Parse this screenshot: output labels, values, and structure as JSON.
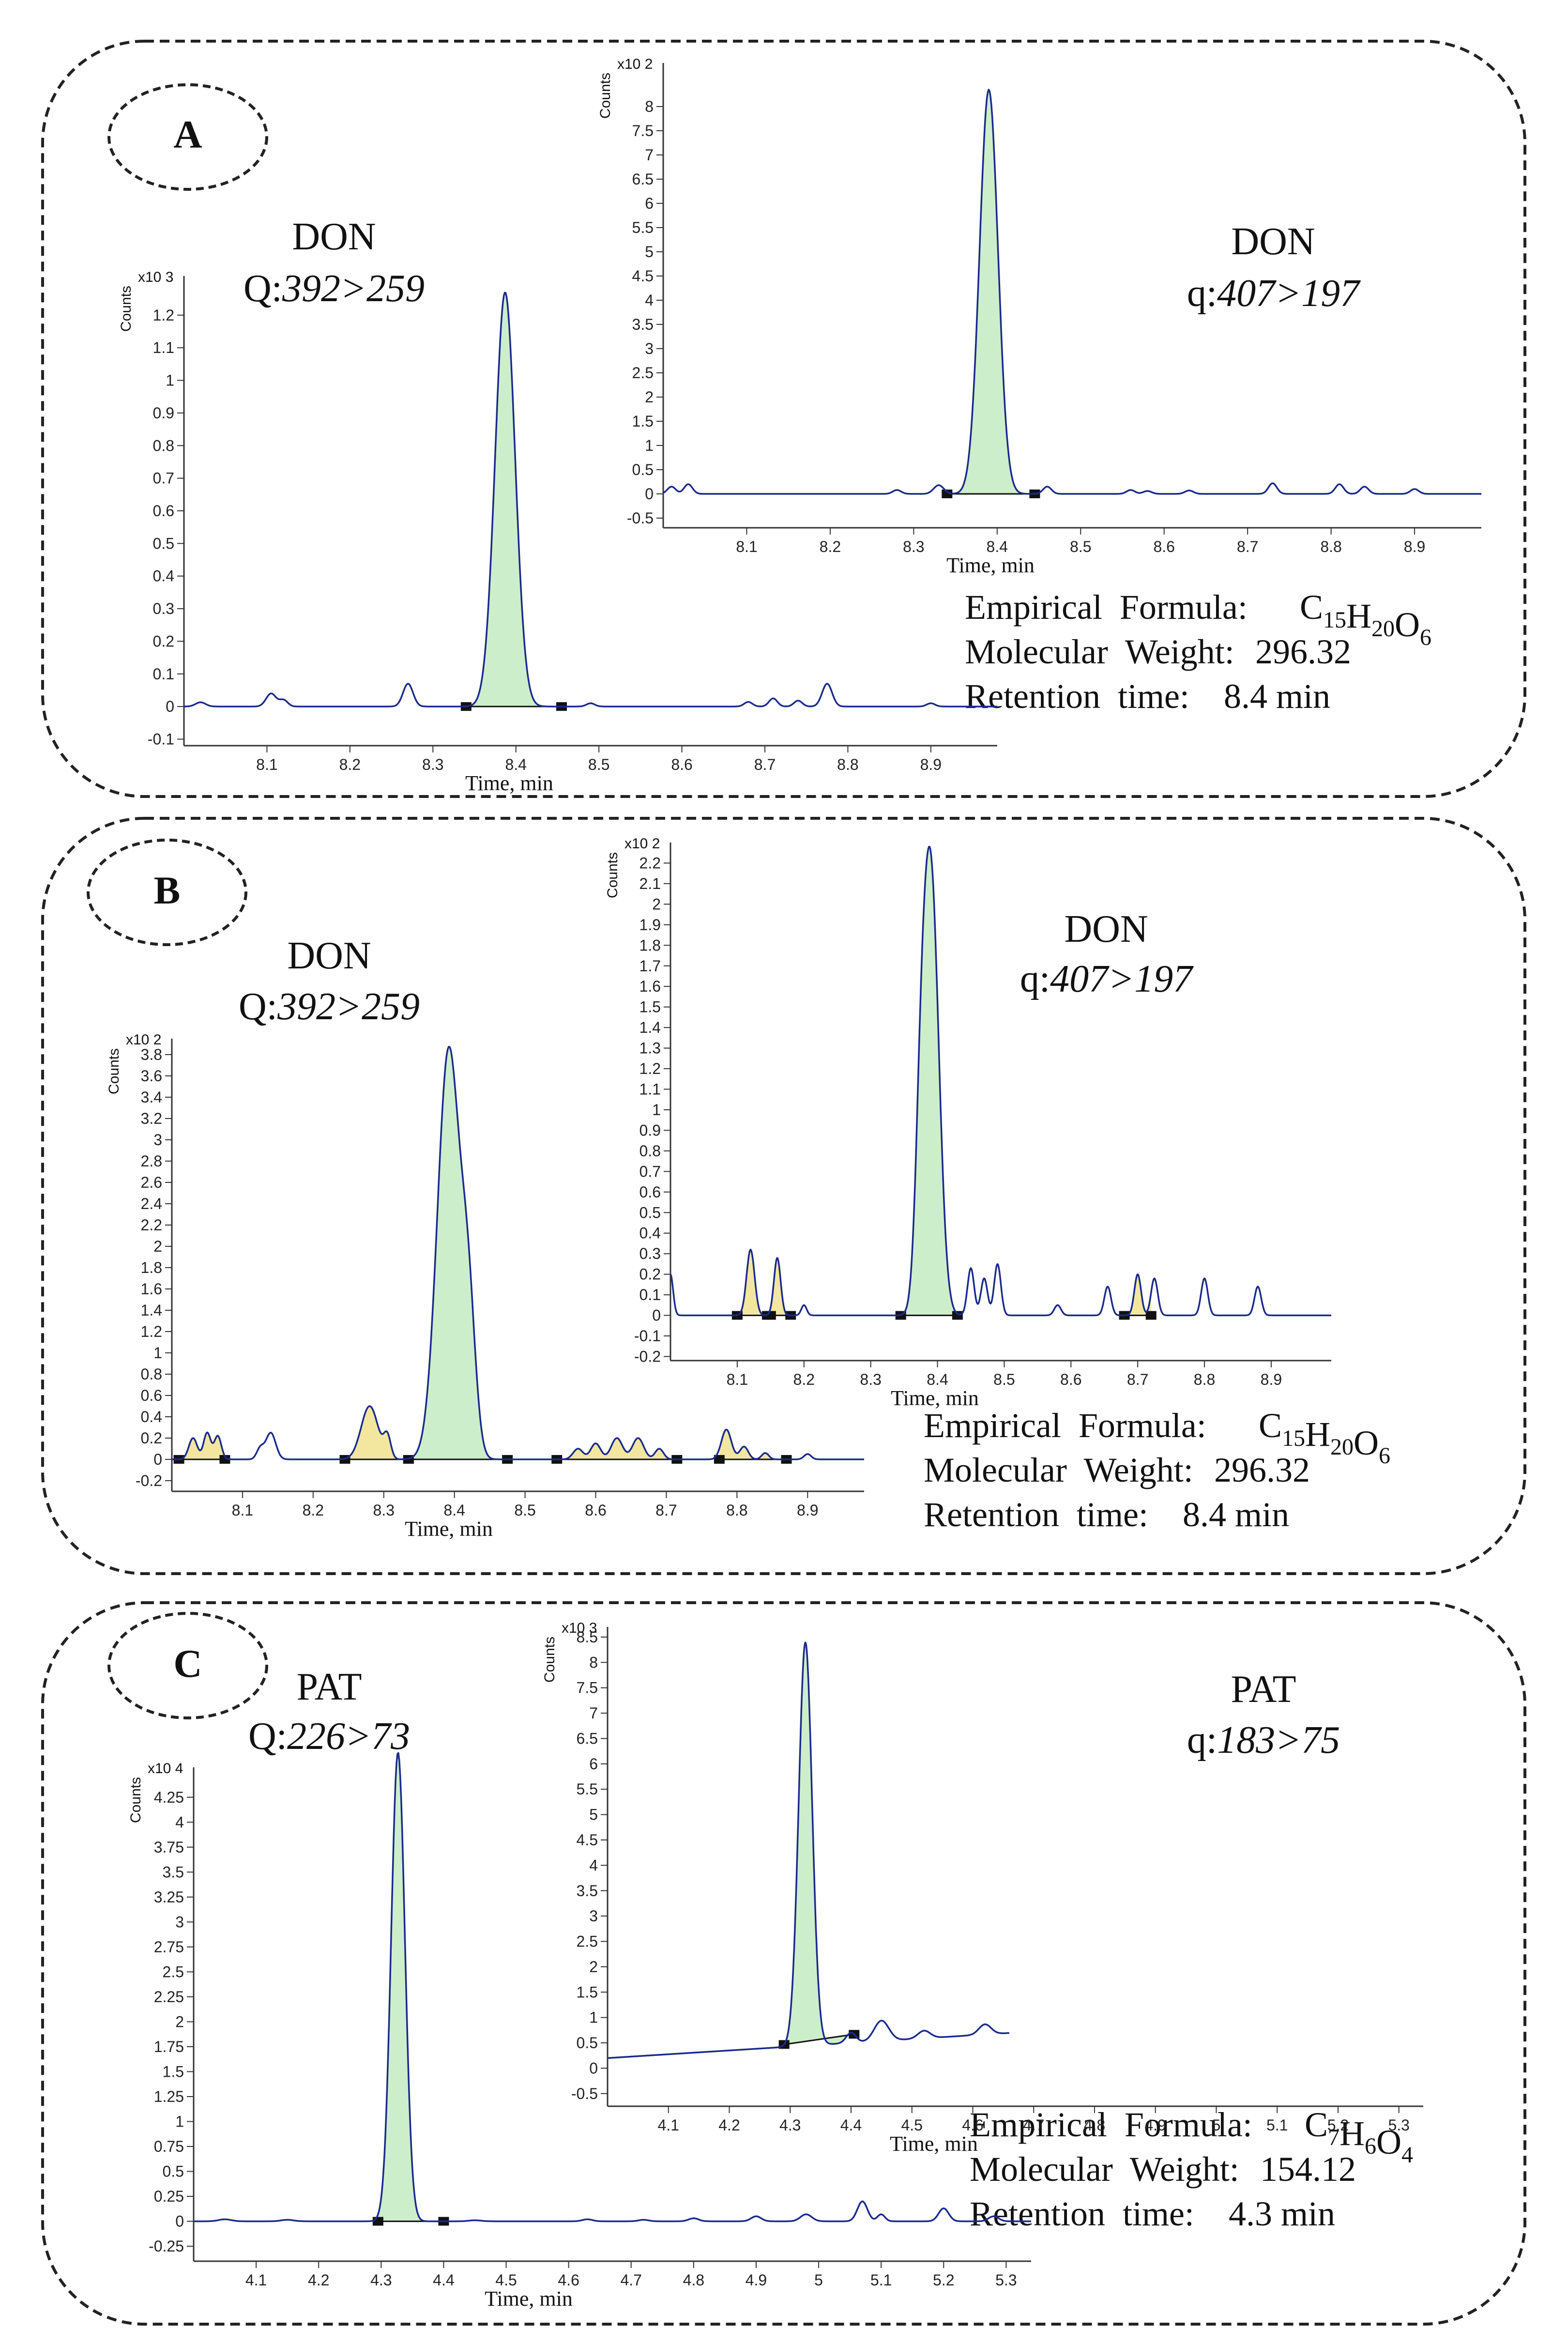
{
  "panels": [
    {
      "label": "A",
      "info": {
        "formula_label": "Empirical  Formula:",
        "formula": [
          "C",
          "15",
          "H",
          "20",
          "O",
          "6"
        ],
        "mw_label": "Molecular  Weight:",
        "mw_value": "296.32",
        "rt_label": "Retention  time:",
        "rt_value": "8.4 min"
      },
      "charts": [
        {
          "role": "quantifier",
          "title_line1": "DON",
          "title_prefix": "Q:",
          "title_transition": "392>259",
          "ylabel": "Counts",
          "multiplier": "x10 3",
          "xlabel": "Time, min",
          "xlim": [
            8.0,
            8.98
          ],
          "ylim": [
            -0.12,
            1.32
          ],
          "xticks": [
            "8.1",
            "8.2",
            "8.3",
            "8.4",
            "8.5",
            "8.6",
            "8.7",
            "8.8",
            "8.9"
          ],
          "yticks": [
            "-0.1",
            "0",
            "0.1",
            "0.2",
            "0.3",
            "0.4",
            "0.5",
            "0.6",
            "0.7",
            "0.8",
            "0.9",
            "1",
            "1.1",
            "1.2"
          ],
          "peaks": [
            {
              "t": 8.387,
              "h": 1.27,
              "s": 0.012
            }
          ],
          "noise": [
            [
              8.02,
              0.013,
              0.006
            ],
            [
              8.105,
              0.04,
              0.006
            ],
            [
              8.12,
              0.02,
              0.005
            ],
            [
              8.27,
              0.07,
              0.006
            ],
            [
              8.49,
              0.01,
              0.005
            ],
            [
              8.68,
              0.014,
              0.005
            ],
            [
              8.71,
              0.025,
              0.005
            ],
            [
              8.74,
              0.018,
              0.005
            ],
            [
              8.775,
              0.07,
              0.006
            ],
            [
              8.9,
              0.01,
              0.005
            ]
          ],
          "integrations": [
            {
              "start": 8.34,
              "end": 8.455,
              "kind": "main"
            }
          ]
        },
        {
          "role": "qualifier",
          "title_line1": "DON",
          "title_prefix": "q:",
          "title_transition": "407>197",
          "ylabel": "Counts",
          "multiplier": "x10 2",
          "xlabel": "Time, min",
          "xlim": [
            8.0,
            8.98
          ],
          "ylim": [
            -0.7,
            8.9
          ],
          "xticks": [
            "8.1",
            "8.2",
            "8.3",
            "8.4",
            "8.5",
            "8.6",
            "8.7",
            "8.8",
            "8.9"
          ],
          "yticks": [
            "-0.5",
            "0",
            "0.5",
            "1",
            "1.5",
            "2",
            "2.5",
            "3",
            "3.5",
            "4",
            "4.5",
            "5",
            "5.5",
            "6",
            "6.5",
            "7",
            "7.5",
            "8"
          ],
          "peaks": [
            {
              "t": 8.39,
              "h": 8.35,
              "s": 0.011
            }
          ],
          "noise": [
            [
              8.01,
              0.15,
              0.005
            ],
            [
              8.03,
              0.2,
              0.005
            ],
            [
              8.28,
              0.08,
              0.005
            ],
            [
              8.33,
              0.18,
              0.006
            ],
            [
              8.46,
              0.15,
              0.005
            ],
            [
              8.56,
              0.08,
              0.005
            ],
            [
              8.58,
              0.06,
              0.005
            ],
            [
              8.63,
              0.07,
              0.005
            ],
            [
              8.73,
              0.22,
              0.005
            ],
            [
              8.81,
              0.2,
              0.005
            ],
            [
              8.84,
              0.15,
              0.005
            ],
            [
              8.9,
              0.1,
              0.005
            ]
          ],
          "integrations": [
            {
              "start": 8.34,
              "end": 8.445,
              "kind": "main"
            }
          ]
        }
      ]
    },
    {
      "label": "B",
      "info": {
        "formula_label": "Empirical  Formula:",
        "formula": [
          "C",
          "15",
          "H",
          "20",
          "O",
          "6"
        ],
        "mw_label": "Molecular  Weight:",
        "mw_value": "296.32",
        "rt_label": "Retention  time:",
        "rt_value": "8.4 min"
      },
      "charts": [
        {
          "role": "quantifier",
          "title_line1": "DON",
          "title_prefix": "Q:",
          "title_transition": "392>259",
          "ylabel": "Counts",
          "multiplier": "x10 2",
          "xlabel": "Time, min",
          "xlim": [
            8.0,
            8.98
          ],
          "ylim": [
            -0.3,
            3.95
          ],
          "xticks": [
            "8.1",
            "8.2",
            "8.3",
            "8.4",
            "8.5",
            "8.6",
            "8.7",
            "8.8",
            "8.9"
          ],
          "yticks": [
            "-0.2",
            "0",
            "0.2",
            "0.4",
            "0.6",
            "0.8",
            "1",
            "1.2",
            "1.4",
            "1.6",
            "1.8",
            "2",
            "2.2",
            "2.4",
            "2.6",
            "2.8",
            "3",
            "3.2",
            "3.4",
            "3.6",
            "3.8"
          ],
          "peaks": [
            {
              "t": 8.392,
              "h": 3.85,
              "s": 0.016
            },
            {
              "t": 8.42,
              "h": 1.2,
              "s": 0.01
            }
          ],
          "noise": [
            [
              8.03,
              0.2,
              0.006
            ],
            [
              8.05,
              0.25,
              0.005
            ],
            [
              8.065,
              0.22,
              0.005
            ],
            [
              8.14,
              0.25,
              0.007
            ],
            [
              8.125,
              0.1,
              0.005
            ],
            [
              8.28,
              0.5,
              0.012
            ],
            [
              8.305,
              0.2,
              0.005
            ],
            [
              8.575,
              0.1,
              0.007
            ],
            [
              8.6,
              0.15,
              0.007
            ],
            [
              8.63,
              0.2,
              0.008
            ],
            [
              8.66,
              0.2,
              0.008
            ],
            [
              8.69,
              0.1,
              0.006
            ],
            [
              8.785,
              0.28,
              0.007
            ],
            [
              8.81,
              0.12,
              0.006
            ],
            [
              8.84,
              0.06,
              0.005
            ],
            [
              8.9,
              0.05,
              0.005
            ]
          ],
          "integrations": [
            {
              "start": 8.01,
              "end": 8.075,
              "kind": "side"
            },
            {
              "start": 8.245,
              "end": 8.335,
              "kind": "side"
            },
            {
              "start": 8.335,
              "end": 8.475,
              "kind": "main"
            },
            {
              "start": 8.545,
              "end": 8.715,
              "kind": "side"
            },
            {
              "start": 8.775,
              "end": 8.87,
              "kind": "side"
            }
          ]
        },
        {
          "role": "qualifier",
          "title_line1": "DON",
          "title_prefix": "q:",
          "title_transition": "407>197",
          "ylabel": "Counts",
          "multiplier": "x10 2",
          "xlabel": "Time, min",
          "xlim": [
            8.0,
            8.99
          ],
          "ylim": [
            -0.22,
            2.3
          ],
          "xticks": [
            "8.1",
            "8.2",
            "8.3",
            "8.4",
            "8.5",
            "8.6",
            "8.7",
            "8.8",
            "8.9"
          ],
          "yticks": [
            "-0.2",
            "-0.1",
            "0",
            "0.1",
            "0.2",
            "0.3",
            "0.4",
            "0.5",
            "0.6",
            "0.7",
            "0.8",
            "0.9",
            "1",
            "1.1",
            "1.2",
            "1.3",
            "1.4",
            "1.5",
            "1.6",
            "1.7",
            "1.8",
            "1.9",
            "2",
            "2.1",
            "2.2"
          ],
          "peaks": [
            {
              "t": 8.39,
              "h": 2.15,
              "s": 0.012
            },
            {
              "t": 8.375,
              "h": 0.6,
              "s": 0.008
            }
          ],
          "noise": [
            [
              8.0,
              0.2,
              0.004
            ],
            [
              8.12,
              0.32,
              0.006
            ],
            [
              8.16,
              0.28,
              0.005
            ],
            [
              8.2,
              0.05,
              0.004
            ],
            [
              8.45,
              0.23,
              0.005
            ],
            [
              8.47,
              0.18,
              0.005
            ],
            [
              8.49,
              0.25,
              0.005
            ],
            [
              8.58,
              0.05,
              0.005
            ],
            [
              8.655,
              0.14,
              0.005
            ],
            [
              8.7,
              0.2,
              0.005
            ],
            [
              8.725,
              0.18,
              0.005
            ],
            [
              8.8,
              0.18,
              0.005
            ],
            [
              8.88,
              0.14,
              0.005
            ]
          ],
          "integrations": [
            {
              "start": 8.1,
              "end": 8.145,
              "kind": "side"
            },
            {
              "start": 8.15,
              "end": 8.18,
              "kind": "side"
            },
            {
              "start": 8.345,
              "end": 8.43,
              "kind": "main"
            },
            {
              "start": 8.68,
              "end": 8.72,
              "kind": "side"
            }
          ]
        }
      ]
    },
    {
      "label": "C",
      "info": {
        "formula_label": "Empirical  Formula:",
        "formula": [
          "C",
          "7",
          "H",
          "6",
          "O",
          "4"
        ],
        "mw_label": "Molecular  Weight:",
        "mw_value": "154.12",
        "rt_label": "Retention  time:",
        "rt_value": "4.3 min"
      },
      "charts": [
        {
          "role": "quantifier",
          "title_line1": "PAT",
          "title_prefix": "Q:",
          "title_transition": "226>73",
          "ylabel": "Counts",
          "multiplier": "x10 4",
          "xlabel": "Time, min",
          "xlim": [
            4.0,
            5.34
          ],
          "ylim": [
            -0.4,
            4.55
          ],
          "xticks": [
            "4.1",
            "4.2",
            "4.3",
            "4.4",
            "4.5",
            "4.6",
            "4.7",
            "4.8",
            "4.9",
            "5",
            "5.1",
            "5.2",
            "5.3"
          ],
          "yticks": [
            "-0.25",
            "0",
            "0.25",
            "0.5",
            "0.75",
            "1",
            "1.25",
            "1.5",
            "1.75",
            "2",
            "2.25",
            "2.5",
            "2.75",
            "3",
            "3.25",
            "3.5",
            "3.75",
            "4",
            "4.25"
          ],
          "peaks": [
            {
              "t": 4.327,
              "h": 4.7,
              "s": 0.011
            }
          ],
          "noise": [
            [
              4.05,
              0.02,
              0.01
            ],
            [
              4.15,
              0.015,
              0.01
            ],
            [
              4.45,
              0.01,
              0.01
            ],
            [
              4.63,
              0.02,
              0.008
            ],
            [
              4.72,
              0.015,
              0.008
            ],
            [
              4.8,
              0.03,
              0.008
            ],
            [
              4.9,
              0.05,
              0.008
            ],
            [
              4.98,
              0.07,
              0.009
            ],
            [
              5.07,
              0.2,
              0.008
            ],
            [
              5.1,
              0.07,
              0.006
            ],
            [
              5.2,
              0.13,
              0.008
            ],
            [
              5.28,
              0.05,
              0.008
            ]
          ],
          "integrations": [
            {
              "start": 4.295,
              "end": 4.4,
              "kind": "main"
            }
          ]
        },
        {
          "role": "qualifier",
          "title_line1": "PAT",
          "title_prefix": "q:",
          "title_transition": "183>75",
          "ylabel": "Counts",
          "multiplier": "x10 3",
          "xlabel": "Time, min",
          "xlim": [
            4.0,
            5.34
          ],
          "ylim": [
            -0.75,
            8.7
          ],
          "xticks": [
            "4.1",
            "4.2",
            "4.3",
            "4.4",
            "4.5",
            "4.6",
            "4.7",
            "4.8",
            "4.9",
            "5",
            "5.1",
            "5.2",
            "5.3"
          ],
          "yticks": [
            "-0.5",
            "0",
            "0.5",
            "1",
            "1.5",
            "2",
            "2.5",
            "3",
            "3.5",
            "4",
            "4.5",
            "5",
            "5.5",
            "6",
            "6.5",
            "7",
            "7.5",
            "8",
            "8.5"
          ],
          "peaks": [
            {
              "t": 4.325,
              "h": 7.95,
              "s": 0.011
            }
          ],
          "noise": [
            [
              4.45,
              0.4,
              0.012
            ],
            [
              4.52,
              0.15,
              0.01
            ],
            [
              4.62,
              0.2,
              0.01
            ],
            [
              4.4,
              0.2,
              0.008
            ]
          ],
          "baseline": [
            0.2,
            0.00075
          ],
          "trace_end": 4.66,
          "integrations": [
            {
              "start": 4.29,
              "end": 4.405,
              "kind": "main"
            }
          ]
        }
      ]
    }
  ],
  "colors": {
    "trace": "#1a2a8c",
    "main_fill": "#cdeecb",
    "side_fill": "#f3e7a0",
    "axis": "#333333",
    "border": "#222222"
  }
}
